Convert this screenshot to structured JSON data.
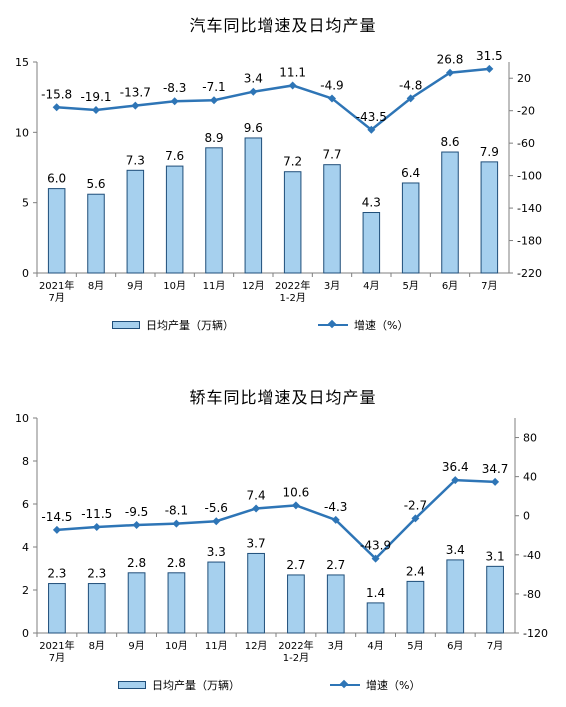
{
  "chart_data": [
    {
      "type": "bar+line",
      "title": "汽车同比增速及日均产量",
      "categories": [
        "2021年\n7月",
        "8月",
        "9月",
        "10月",
        "11月",
        "12月",
        "2022年\n1-2月",
        "3月",
        "4月",
        "5月",
        "6月",
        "7月"
      ],
      "series": [
        {
          "name": "日均产量（万辆）",
          "type": "bar",
          "axis": "left",
          "values": [
            6.0,
            5.6,
            7.3,
            7.6,
            8.9,
            9.6,
            7.2,
            7.7,
            4.3,
            6.4,
            8.6,
            7.9
          ]
        },
        {
          "name": "增速（%）",
          "type": "line",
          "axis": "right",
          "values": [
            -15.8,
            -19.1,
            -13.7,
            -8.3,
            -7.1,
            3.4,
            11.1,
            -4.9,
            -43.5,
            -4.8,
            26.8,
            31.5
          ]
        }
      ],
      "left_axis": {
        "ylim": [
          0,
          15
        ],
        "ticks": [
          0,
          5,
          10,
          15
        ]
      },
      "right_axis": {
        "ylim": [
          -220,
          40
        ],
        "ticks": [
          20,
          -20,
          -60,
          -100,
          -140,
          -180,
          -220
        ]
      },
      "bar_labels": [
        "6.0",
        "5.6",
        "7.3",
        "7.6",
        "8.9",
        "9.6",
        "7.2",
        "7.7",
        "4.3",
        "6.4",
        "8.6",
        "7.9"
      ],
      "line_labels": [
        "-15.8",
        "-19.1",
        "-13.7",
        "-8.3",
        "-7.1",
        "3.4",
        "11.1",
        "-4.9",
        "-43.5",
        "-4.8",
        "26.8",
        "31.5"
      ],
      "legend_position": "bottom"
    },
    {
      "type": "bar+line",
      "title": "轿车同比增速及日均产量",
      "categories": [
        "2021年\n7月",
        "8月",
        "9月",
        "10月",
        "11月",
        "12月",
        "2022年\n1-2月",
        "3月",
        "4月",
        "5月",
        "6月",
        "7月"
      ],
      "series": [
        {
          "name": "日均产量（万辆）",
          "type": "bar",
          "axis": "left",
          "values": [
            2.3,
            2.3,
            2.8,
            2.8,
            3.3,
            3.7,
            2.7,
            2.7,
            1.4,
            2.4,
            3.4,
            3.1
          ]
        },
        {
          "name": "增速（%）",
          "type": "line",
          "axis": "right",
          "values": [
            -14.5,
            -11.5,
            -9.5,
            -8.1,
            -5.6,
            7.4,
            10.6,
            -4.3,
            -43.9,
            -2.7,
            36.4,
            34.7
          ]
        }
      ],
      "left_axis": {
        "ylim": [
          0,
          10
        ],
        "ticks": [
          0,
          2,
          4,
          6,
          8,
          10
        ]
      },
      "right_axis": {
        "ylim": [
          -120,
          100
        ],
        "ticks": [
          80,
          40,
          0,
          -40,
          -80,
          -120
        ]
      },
      "bar_labels": [
        "2.3",
        "2.3",
        "2.8",
        "2.8",
        "3.3",
        "3.7",
        "2.7",
        "2.7",
        "1.4",
        "2.4",
        "3.4",
        "3.1"
      ],
      "line_labels": [
        "-14.5",
        "-11.5",
        "-9.5",
        "-8.1",
        "-5.6",
        "7.4",
        "10.6",
        "-4.3",
        "-43.9",
        "-2.7",
        "36.4",
        "34.7"
      ],
      "legend_position": "bottom"
    }
  ],
  "legend": {
    "bar_label": "日均产量（万辆）",
    "line_label": "增速（%）"
  },
  "colors": {
    "bar_fill": "#a6d0ee",
    "bar_stroke": "#1f4e79",
    "line": "#2e75b6",
    "axis": "#7f7f7f"
  }
}
